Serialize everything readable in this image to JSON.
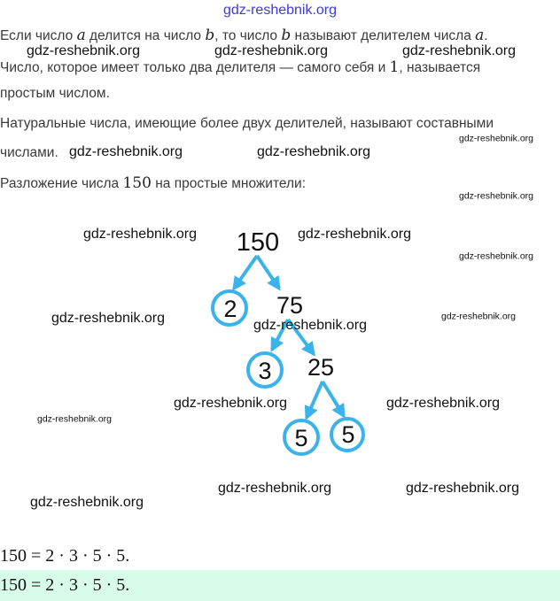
{
  "header": {
    "site": "gdz-reshebnik.org"
  },
  "text": {
    "l1a": "Если число ",
    "l1_var_a": "a",
    "l1b": " делится на число ",
    "l1_var_b": "b",
    "l1c": ", то число ",
    "l1_var_b2": "b",
    "l1d": " называют делителем числа ",
    "l1_var_a2": "a",
    "l1e": ".",
    "l2a": "Число, которое имеет только два делителя — самого себя и ",
    "l2_one": "1",
    "l2b": ", называется",
    "l3": "простым числом.",
    "l4": "Натуральные числа, имеющие более двух делителей, называют составными",
    "l5": "числами.",
    "l6a": "Разложение числа ",
    "l6_num": "150",
    "l6b": " на простые множители:"
  },
  "tree": {
    "root": "150",
    "n75": "75",
    "n25": "25",
    "p2": "2",
    "p3": "3",
    "p5a": "5",
    "p5b": "5",
    "arrow_color": "#3bb3ea"
  },
  "equations": {
    "result": "150 = 2 · 3 · 5 · 5.",
    "answer": "150 = 2 · 3 · 5 · 5.",
    "answer_bg": "#d9fbe9"
  },
  "watermark": "gdz-reshebnik.org"
}
